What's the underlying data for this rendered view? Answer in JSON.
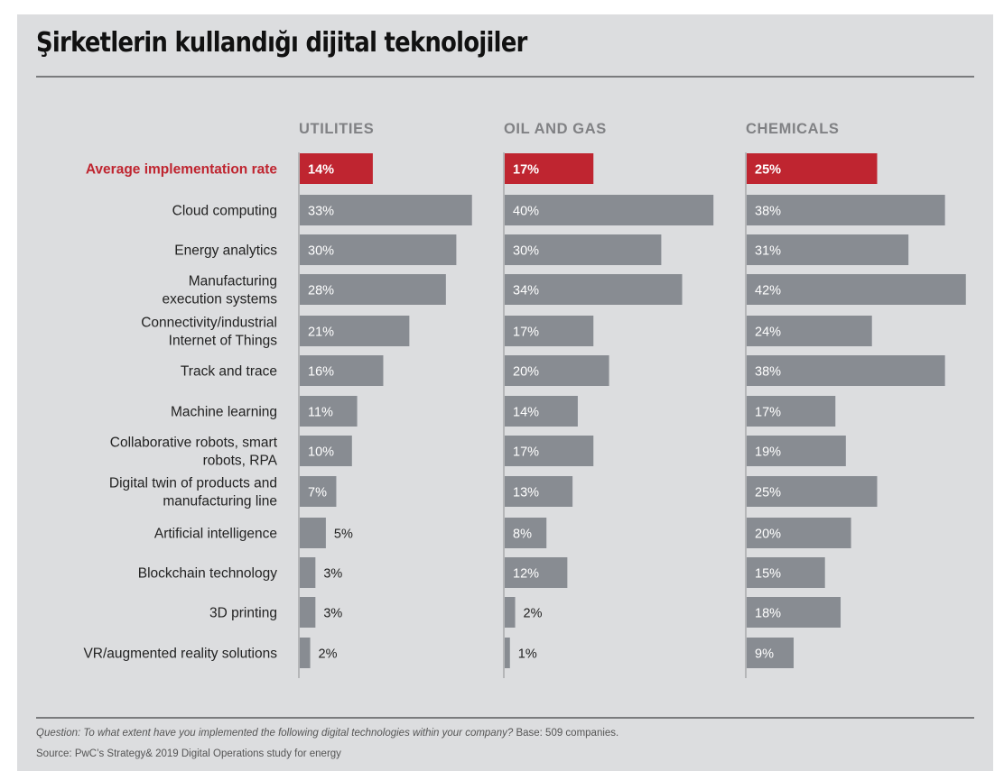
{
  "title": "Şirketlerin kullandığı dijital teknolojiler",
  "footer": {
    "question_italic": "Question: To what extent have you implemented the following digital technologies within your company?",
    "base": " Base: 509 companies.",
    "source": "Source: PwC’s Strategy& 2019 Digital Operations study for energy"
  },
  "colors": {
    "highlight": "#bf2530",
    "bar": "#888c92",
    "background": "#dcdddf"
  },
  "chart_data": {
    "type": "bar",
    "orientation": "horizontal",
    "title": "Şirketlerin kullandığı dijital teknolojiler",
    "xlabel": "",
    "ylabel": "",
    "value_unit": "%",
    "xlim": [
      0,
      42
    ],
    "grid": false,
    "legend": "none",
    "categories": [
      "Average implementation rate",
      "Cloud computing",
      "Energy analytics",
      "Manufacturing\nexecution systems",
      "Connectivity/industrial\nInternet of Things",
      "Track and trace",
      "Machine learning",
      "Collaborative robots, smart\nrobots, RPA",
      "Digital twin of products and\nmanufacturing line",
      "Artificial intelligence",
      "Blockchain technology",
      "3D printing",
      "VR/augmented reality solutions"
    ],
    "highlight_category": "Average implementation rate",
    "series": [
      {
        "name": "UTILITIES",
        "values": [
          14,
          33,
          30,
          28,
          21,
          16,
          11,
          10,
          7,
          5,
          3,
          3,
          2
        ]
      },
      {
        "name": "OIL AND GAS",
        "values": [
          17,
          40,
          30,
          34,
          17,
          20,
          14,
          17,
          13,
          8,
          12,
          2,
          1
        ]
      },
      {
        "name": "CHEMICALS",
        "values": [
          25,
          38,
          31,
          42,
          24,
          38,
          17,
          19,
          25,
          20,
          15,
          18,
          9
        ]
      }
    ]
  }
}
